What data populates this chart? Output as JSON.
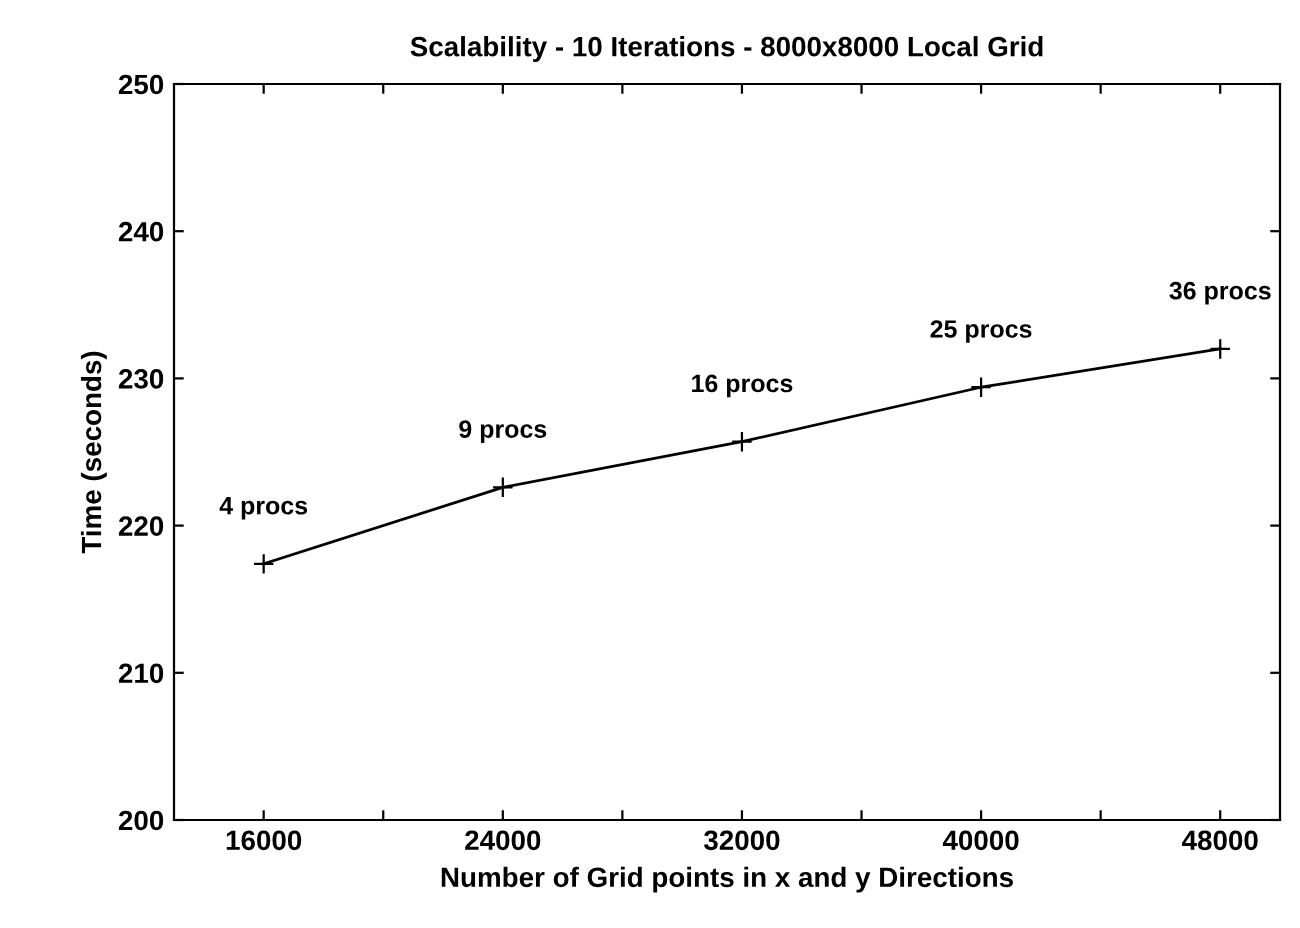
{
  "chart_data": {
    "type": "line",
    "title": "Scalability - 10 Iterations - 8000x8000 Local Grid",
    "xlabel": "Number of Grid points in x and y Directions",
    "ylabel": "Time (seconds)",
    "x": [
      16000,
      24000,
      32000,
      40000,
      48000
    ],
    "series": [
      {
        "color": "#000000",
        "values": [
          217.4,
          222.6,
          225.7,
          229.4,
          232.0
        ]
      }
    ],
    "annotations": [
      {
        "text": "4 procs",
        "x": 16000,
        "y": 217.4
      },
      {
        "text": "9 procs",
        "x": 24000,
        "y": 222.6
      },
      {
        "text": "16 procs",
        "x": 32000,
        "y": 225.7
      },
      {
        "text": "25 procs",
        "x": 40000,
        "y": 229.4
      },
      {
        "text": "36 procs",
        "x": 48000,
        "y": 232.0
      }
    ],
    "xlim": [
      13000,
      50000
    ],
    "xticks": [
      16000,
      {
        "value": 20000,
        "label": null
      },
      24000,
      {
        "value": 28000,
        "label": null
      },
      32000,
      {
        "value": 36000,
        "label": null
      },
      40000,
      {
        "value": 44000,
        "label": null
      },
      48000
    ],
    "ylim": [
      200,
      250
    ],
    "yticks": [
      200,
      210,
      220,
      230,
      240,
      250
    ],
    "marker": "cross",
    "line_style": "solid",
    "grid": false,
    "legend": false
  }
}
